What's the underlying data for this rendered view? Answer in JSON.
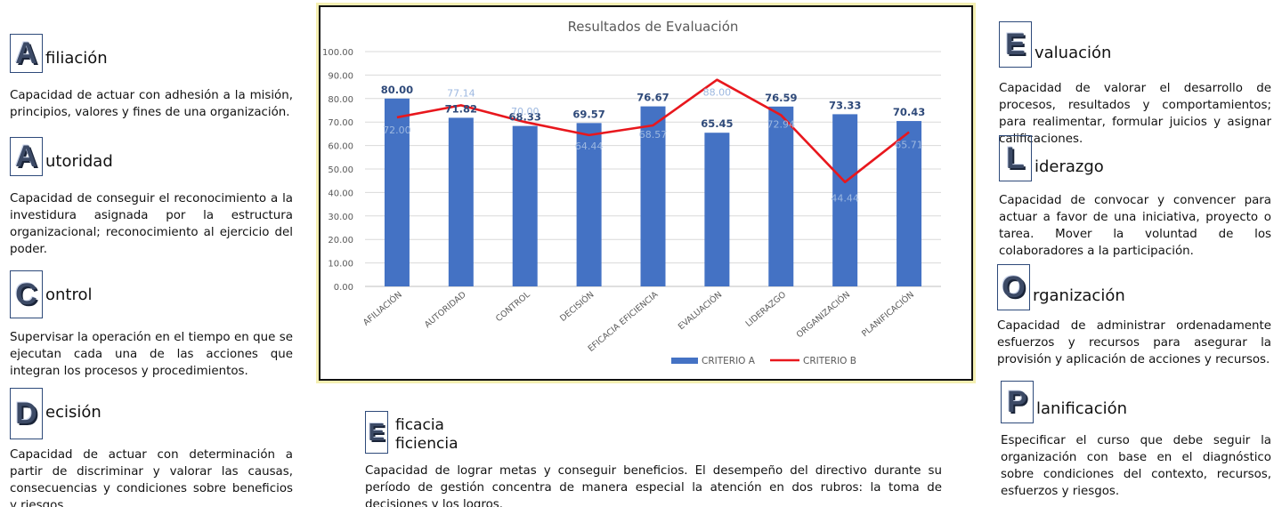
{
  "chart_data": {
    "type": "bar",
    "title": "Resultados de Evaluación",
    "categories": [
      "AFILIACIÓN",
      "AUTORIDAD",
      "CONTROL",
      "DECISIÓN",
      "EFICACIA EFICIENCIA",
      "EVALUACIÓN",
      "LIDERAZGO",
      "ORGANIZACIÓN",
      "PLANIFICACIÓN"
    ],
    "series": [
      {
        "name": "CRITERIO A",
        "kind": "bar",
        "color": "#4472c4",
        "values": [
          80.0,
          71.82,
          68.33,
          69.57,
          76.67,
          65.45,
          76.59,
          73.33,
          70.43
        ]
      },
      {
        "name": "CRITERIO B",
        "kind": "line",
        "color": "#e8171d",
        "values": [
          72.0,
          77.14,
          70.0,
          64.44,
          68.57,
          88.0,
          72.94,
          44.44,
          65.71
        ]
      }
    ],
    "value_labels_a": [
      "80.00",
      "71.82",
      "68.33",
      "69.57",
      "76.67",
      "65.45",
      "76.59",
      "73.33",
      "70.43"
    ],
    "value_labels_b": [
      "72.00",
      "77.14",
      "70.00",
      "64.44",
      "68.57",
      "88.00",
      "72.94",
      "44.44",
      "65.71"
    ],
    "yticks": [
      "0.00",
      "10.00",
      "20.00",
      "30.00",
      "40.00",
      "50.00",
      "60.00",
      "70.00",
      "80.00",
      "90.00",
      "100.00"
    ],
    "ylim": [
      0,
      100
    ],
    "grid": true,
    "legend": "bottom"
  },
  "left": [
    {
      "letter": "A",
      "rest": "filiación",
      "desc": "Capacidad de actuar con adhesión a la misión, principios, valores y fines de una organización."
    },
    {
      "letter": "A",
      "rest": "utoridad",
      "desc": "Capacidad de conseguir el reconocimiento a la investidura asignada por la estructura organizacional; reconocimiento al ejercicio del poder."
    },
    {
      "letter": "C",
      "rest": "ontrol",
      "desc": "Supervisar la operación en el tiempo en que se ejecutan cada una de las acciones que integran los procesos y procedimientos."
    },
    {
      "letter": "D",
      "rest": "ecisión",
      "desc": "Capacidad de actuar con determinación a partir de discriminar y valorar las causas, consecuencias y condiciones sobre beneficios y riesgos."
    }
  ],
  "center": {
    "letter": "E",
    "rest1": "ficacia",
    "rest2": "ficiencia",
    "desc": "Capacidad de lograr metas y conseguir beneficios. El desempeño del directivo durante su período de gestión concentra de manera especial la atención en dos rubros: la toma de decisiones y los logros."
  },
  "right": [
    {
      "letter": "E",
      "rest": "valuación",
      "desc": "Capacidad de valorar el desarrollo de procesos, resultados y comportamientos; para realimentar, formular juicios y asignar calificaciones."
    },
    {
      "letter": "L",
      "rest": "iderazgo",
      "desc": "Capacidad de convocar y convencer para actuar a favor de una iniciativa, proyecto o tarea. Mover la voluntad de los colaboradores a la participación."
    },
    {
      "letter": "O",
      "rest": "rganización",
      "desc": "Capacidad de administrar ordenadamente esfuerzos y recursos para asegurar la provisión y aplicación de acciones y recursos."
    },
    {
      "letter": "P",
      "rest": "lanificación",
      "desc": "Especificar el curso que debe seguir la organización con base en el diagnóstico sobre condiciones del contexto, recursos, esfuerzos y riesgos."
    }
  ]
}
